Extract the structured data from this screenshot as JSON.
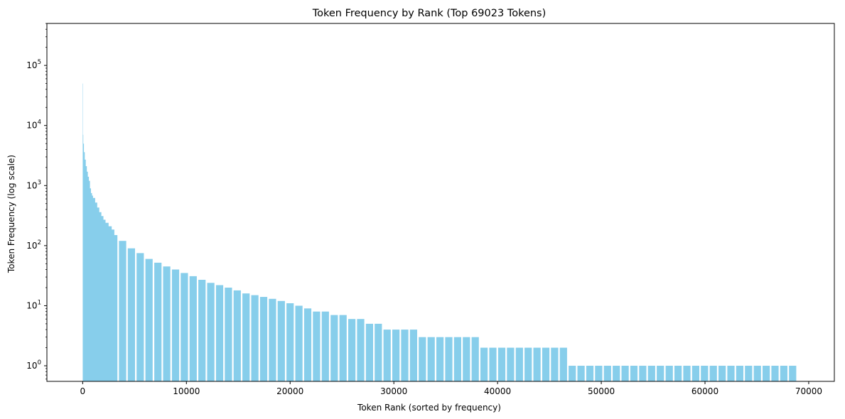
{
  "chart_data": {
    "type": "bar",
    "title": "Token Frequency by Rank (Top 69023 Tokens)",
    "xlabel": "Token Rank (sorted by frequency)",
    "ylabel": "Token Frequency (log scale)",
    "yscale": "log",
    "xlim": [
      -3450,
      72470
    ],
    "ylim": [
      0.55,
      500000
    ],
    "bar_color": "#87CEEB",
    "grid": false,
    "x_ticks": [
      {
        "value": 0,
        "label": "0"
      },
      {
        "value": 10000,
        "label": "10000"
      },
      {
        "value": 20000,
        "label": "20000"
      },
      {
        "value": 30000,
        "label": "30000"
      },
      {
        "value": 40000,
        "label": "40000"
      },
      {
        "value": 50000,
        "label": "50000"
      },
      {
        "value": 60000,
        "label": "60000"
      },
      {
        "value": 70000,
        "label": "70000"
      }
    ],
    "y_ticks": [
      {
        "value": 1,
        "base": "10",
        "exp": "0"
      },
      {
        "value": 10,
        "base": "10",
        "exp": "1"
      },
      {
        "value": 100,
        "base": "10",
        "exp": "2"
      },
      {
        "value": 1000,
        "base": "10",
        "exp": "3"
      },
      {
        "value": 10000,
        "base": "10",
        "exp": "4"
      },
      {
        "value": 100000,
        "base": "10",
        "exp": "5"
      }
    ],
    "head_points": [
      [
        0,
        50000
      ],
      [
        30,
        7000
      ],
      [
        60,
        5000
      ],
      [
        120,
        3600
      ],
      [
        200,
        2700
      ],
      [
        300,
        2100
      ],
      [
        400,
        1700
      ],
      [
        500,
        1400
      ],
      [
        600,
        1200
      ],
      [
        700,
        900
      ],
      [
        800,
        750
      ],
      [
        900,
        680
      ],
      [
        1000,
        620
      ],
      [
        1200,
        520
      ],
      [
        1400,
        430
      ],
      [
        1600,
        360
      ],
      [
        1800,
        310
      ],
      [
        2000,
        270
      ],
      [
        2200,
        240
      ],
      [
        2500,
        210
      ],
      [
        2800,
        185
      ]
    ],
    "bins": [
      {
        "x": 3000,
        "freq": 150
      },
      {
        "x": 3850,
        "freq": 120
      },
      {
        "x": 4700,
        "freq": 90
      },
      {
        "x": 5550,
        "freq": 75
      },
      {
        "x": 6400,
        "freq": 60
      },
      {
        "x": 7250,
        "freq": 52
      },
      {
        "x": 8100,
        "freq": 45
      },
      {
        "x": 8950,
        "freq": 40
      },
      {
        "x": 9800,
        "freq": 35
      },
      {
        "x": 10650,
        "freq": 31
      },
      {
        "x": 11500,
        "freq": 27
      },
      {
        "x": 12350,
        "freq": 24
      },
      {
        "x": 13200,
        "freq": 22
      },
      {
        "x": 14050,
        "freq": 20
      },
      {
        "x": 14900,
        "freq": 18
      },
      {
        "x": 15750,
        "freq": 16
      },
      {
        "x": 16600,
        "freq": 15
      },
      {
        "x": 17450,
        "freq": 14
      },
      {
        "x": 18300,
        "freq": 13
      },
      {
        "x": 19150,
        "freq": 12
      },
      {
        "x": 20000,
        "freq": 11
      },
      {
        "x": 20850,
        "freq": 10
      },
      {
        "x": 21700,
        "freq": 9
      },
      {
        "x": 22550,
        "freq": 8
      },
      {
        "x": 23400,
        "freq": 8
      },
      {
        "x": 24250,
        "freq": 7
      },
      {
        "x": 25100,
        "freq": 7
      },
      {
        "x": 25950,
        "freq": 6
      },
      {
        "x": 26800,
        "freq": 6
      },
      {
        "x": 27650,
        "freq": 5
      },
      {
        "x": 28500,
        "freq": 5
      },
      {
        "x": 29350,
        "freq": 4
      },
      {
        "x": 30200,
        "freq": 4
      },
      {
        "x": 31050,
        "freq": 4
      },
      {
        "x": 31900,
        "freq": 4
      },
      {
        "x": 32750,
        "freq": 3
      },
      {
        "x": 33600,
        "freq": 3
      },
      {
        "x": 34450,
        "freq": 3
      },
      {
        "x": 35300,
        "freq": 3
      },
      {
        "x": 36150,
        "freq": 3
      },
      {
        "x": 37000,
        "freq": 3
      },
      {
        "x": 37850,
        "freq": 3
      },
      {
        "x": 38700,
        "freq": 2
      },
      {
        "x": 39550,
        "freq": 2
      },
      {
        "x": 40400,
        "freq": 2
      },
      {
        "x": 41250,
        "freq": 2
      },
      {
        "x": 42100,
        "freq": 2
      },
      {
        "x": 42950,
        "freq": 2
      },
      {
        "x": 43800,
        "freq": 2
      },
      {
        "x": 44650,
        "freq": 2
      },
      {
        "x": 45500,
        "freq": 2
      },
      {
        "x": 46350,
        "freq": 2
      },
      {
        "x": 47200,
        "freq": 1
      },
      {
        "x": 48050,
        "freq": 1
      },
      {
        "x": 48900,
        "freq": 1
      },
      {
        "x": 49750,
        "freq": 1
      },
      {
        "x": 50600,
        "freq": 1
      },
      {
        "x": 51450,
        "freq": 1
      },
      {
        "x": 52300,
        "freq": 1
      },
      {
        "x": 53150,
        "freq": 1
      },
      {
        "x": 54000,
        "freq": 1
      },
      {
        "x": 54850,
        "freq": 1
      },
      {
        "x": 55700,
        "freq": 1
      },
      {
        "x": 56550,
        "freq": 1
      },
      {
        "x": 57400,
        "freq": 1
      },
      {
        "x": 58250,
        "freq": 1
      },
      {
        "x": 59100,
        "freq": 1
      },
      {
        "x": 59950,
        "freq": 1
      },
      {
        "x": 60800,
        "freq": 1
      },
      {
        "x": 61650,
        "freq": 1
      },
      {
        "x": 62500,
        "freq": 1
      },
      {
        "x": 63350,
        "freq": 1
      },
      {
        "x": 64200,
        "freq": 1
      },
      {
        "x": 65050,
        "freq": 1
      },
      {
        "x": 65900,
        "freq": 1
      },
      {
        "x": 66750,
        "freq": 1
      },
      {
        "x": 67600,
        "freq": 1
      },
      {
        "x": 68450,
        "freq": 1
      }
    ],
    "bin_width": 700
  }
}
